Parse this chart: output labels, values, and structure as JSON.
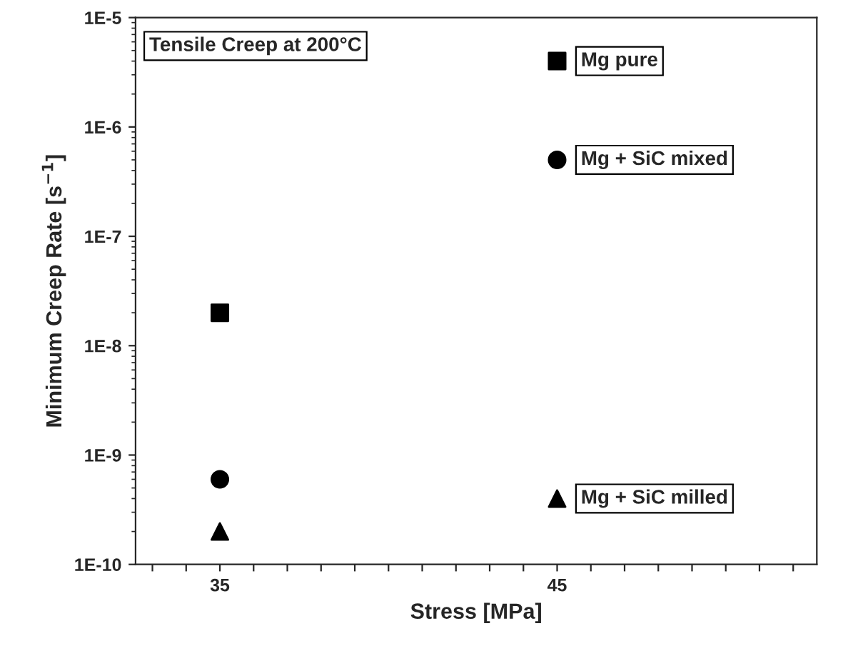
{
  "chart_data": {
    "type": "scatter",
    "xlabel": "Stress [MPa]",
    "ylabel": "Minimum Creep Rate [s$^{−1}$]",
    "annotations": [
      "Tensile Creep at 200°C"
    ],
    "x": [
      35,
      45
    ],
    "series": [
      {
        "name": "Mg pure",
        "color": "#000000",
        "marker": "square",
        "values": [
          2e-08,
          4e-06
        ]
      },
      {
        "name": "Mg + SiC mixed",
        "color": "#000000",
        "marker": "circle",
        "values": [
          6e-10,
          5e-07
        ]
      },
      {
        "name": "Mg + SiC milled",
        "color": "#000000",
        "marker": "triangle",
        "values": [
          2e-10,
          4e-10
        ]
      }
    ],
    "log": "y",
    "xlim": [
      32.5,
      52.7
    ],
    "ylim": [
      1e-10,
      1e-05
    ],
    "xticks": [
      {
        "value": 33,
        "label": null
      },
      {
        "value": 34,
        "label": null
      },
      35,
      {
        "value": 36,
        "label": null
      },
      {
        "value": 37,
        "label": null
      },
      {
        "value": 38,
        "label": null
      },
      {
        "value": 39,
        "label": null
      },
      {
        "value": 40,
        "label": null
      },
      {
        "value": 41,
        "label": null
      },
      {
        "value": 42,
        "label": null
      },
      {
        "value": 43,
        "label": null
      },
      {
        "value": 44,
        "label": null
      },
      45,
      {
        "value": 46,
        "label": null
      },
      {
        "value": 47,
        "label": null
      },
      {
        "value": 48,
        "label": null
      },
      {
        "value": 49,
        "label": null
      },
      {
        "value": 50,
        "label": null
      },
      {
        "value": 51,
        "label": null
      },
      {
        "value": 52,
        "label": null
      }
    ],
    "yticks": [
      {
        "value": 1e-10,
        "label": "1E-10"
      },
      {
        "value": 1e-09,
        "label": "1E-9"
      },
      {
        "value": 1e-08,
        "label": "1E-8"
      },
      {
        "value": 1e-07,
        "label": "1E-7"
      },
      {
        "value": 1e-06,
        "label": "1E-6"
      },
      {
        "value": 1e-05,
        "label": "1E-5"
      }
    ],
    "grid": false,
    "legend": false
  }
}
